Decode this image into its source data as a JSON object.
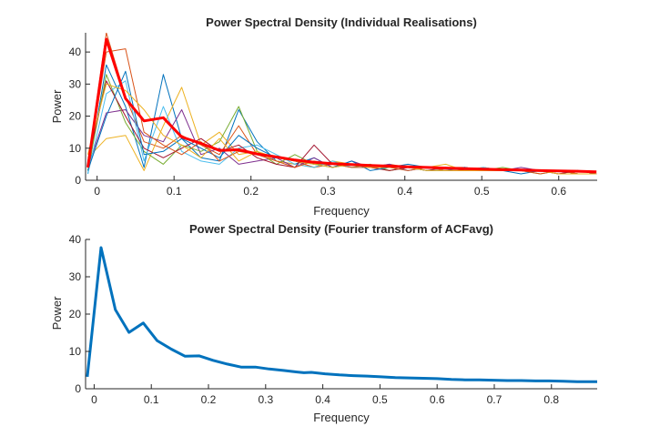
{
  "chart_data": [
    {
      "type": "line",
      "title": "Power Spectral Density (Individual Realisations)",
      "xlabel": "Frequency",
      "ylabel": "Power",
      "xlim": [
        -0.015,
        0.65
      ],
      "ylim": [
        0,
        46
      ],
      "xticks": [
        "0",
        "0.1",
        "0.2",
        "0.3",
        "0.4",
        "0.5",
        "0.6"
      ],
      "yticks": [
        "0",
        "10",
        "20",
        "30",
        "40"
      ],
      "grid": false,
      "x": [
        -0.012,
        0.012,
        0.037,
        0.061,
        0.086,
        0.11,
        0.135,
        0.159,
        0.184,
        0.208,
        0.233,
        0.257,
        0.282,
        0.306,
        0.331,
        0.355,
        0.38,
        0.404,
        0.429,
        0.453,
        0.478,
        0.502,
        0.527,
        0.551,
        0.576,
        0.6,
        0.625,
        0.649
      ],
      "series": [
        {
          "color": "#0072BD",
          "values": [
            2,
            36,
            23,
            4,
            33,
            13,
            7,
            6,
            22,
            12,
            6,
            5,
            7,
            4,
            5,
            4,
            4,
            5,
            4,
            3,
            3,
            4,
            3,
            3,
            3,
            3,
            3,
            2
          ]
        },
        {
          "color": "#D95319",
          "values": [
            5,
            46,
            26,
            12,
            10,
            14,
            11,
            8,
            17,
            8,
            7,
            6,
            4,
            5,
            5,
            4,
            5,
            4,
            4,
            4,
            4,
            3,
            3,
            3,
            3,
            3,
            2,
            2
          ]
        },
        {
          "color": "#EDB120",
          "values": [
            7,
            13,
            14,
            3,
            17,
            29,
            11,
            15,
            8,
            9,
            6,
            5,
            4,
            6,
            5,
            4,
            3,
            4,
            4,
            5,
            3,
            4,
            3,
            3,
            3,
            3,
            3,
            2
          ]
        },
        {
          "color": "#7E2F8E",
          "values": [
            4,
            21,
            22,
            14,
            12,
            22,
            8,
            10,
            5,
            6,
            7,
            4,
            7,
            4,
            6,
            4,
            5,
            3,
            4,
            3,
            4,
            3,
            3,
            4,
            3,
            2,
            3,
            2
          ]
        },
        {
          "color": "#77AC30",
          "values": [
            3,
            33,
            18,
            9,
            5,
            11,
            9,
            12,
            23,
            9,
            5,
            8,
            5,
            5,
            4,
            5,
            3,
            4,
            3,
            4,
            3,
            3,
            4,
            3,
            2,
            3,
            2,
            2
          ]
        },
        {
          "color": "#4DBEEE",
          "values": [
            2,
            27,
            31,
            6,
            23,
            9,
            6,
            5,
            10,
            11,
            8,
            5,
            4,
            6,
            4,
            4,
            4,
            3,
            4,
            3,
            3,
            4,
            3,
            3,
            3,
            2,
            2,
            2
          ]
        },
        {
          "color": "#A2142F",
          "values": [
            6,
            31,
            20,
            10,
            7,
            10,
            13,
            9,
            11,
            7,
            5,
            4,
            11,
            5,
            5,
            4,
            3,
            4,
            3,
            4,
            3,
            3,
            3,
            3,
            3,
            2,
            3,
            2
          ]
        },
        {
          "color": "#0072BD",
          "values": [
            3,
            20,
            34,
            8,
            9,
            13,
            10,
            7,
            14,
            10,
            7,
            6,
            5,
            4,
            6,
            3,
            4,
            4,
            3,
            3,
            4,
            3,
            3,
            2,
            3,
            3,
            2,
            2
          ]
        },
        {
          "color": "#D95319",
          "values": [
            4,
            40,
            41,
            15,
            11,
            8,
            12,
            6,
            9,
            8,
            6,
            4,
            6,
            5,
            4,
            4,
            4,
            3,
            4,
            3,
            3,
            3,
            3,
            3,
            2,
            3,
            2,
            2
          ]
        },
        {
          "color": "#EDB120",
          "values": [
            8,
            30,
            28,
            22,
            14,
            11,
            7,
            13,
            6,
            9,
            7,
            6,
            5,
            4,
            5,
            4,
            4,
            4,
            3,
            3,
            3,
            3,
            3,
            3,
            3,
            2,
            2,
            2
          ]
        },
        {
          "color": "#FF0000",
          "width": 3,
          "values": [
            4,
            44,
            25.5,
            18.5,
            19.5,
            13.5,
            11.5,
            9.3,
            9.5,
            8.2,
            7.3,
            6.3,
            5.6,
            5.2,
            4.9,
            4.6,
            4.4,
            4.2,
            4.0,
            3.8,
            3.6,
            3.5,
            3.3,
            3.2,
            3.0,
            2.9,
            2.8,
            2.6
          ]
        }
      ]
    },
    {
      "type": "line",
      "title": "Power Spectral Density (Fourier transform of ACFavg)",
      "xlabel": "Frequency",
      "ylabel": "Power",
      "xlim": [
        -0.015,
        0.88
      ],
      "ylim": [
        0,
        40
      ],
      "xticks": [
        "0",
        "0.1",
        "0.2",
        "0.3",
        "0.4",
        "0.5",
        "0.6",
        "0.7",
        "0.8"
      ],
      "yticks": [
        "0",
        "10",
        "20",
        "30",
        "40"
      ],
      "grid": false,
      "series": [
        {
          "color": "#0072BD",
          "width": 3,
          "x": [
            -0.012,
            0.012,
            0.037,
            0.061,
            0.086,
            0.11,
            0.135,
            0.159,
            0.184,
            0.208,
            0.233,
            0.257,
            0.282,
            0.306,
            0.331,
            0.355,
            0.367,
            0.38,
            0.404,
            0.429,
            0.453,
            0.478,
            0.502,
            0.527,
            0.551,
            0.576,
            0.6,
            0.625,
            0.649,
            0.674,
            0.698,
            0.723,
            0.747,
            0.772,
            0.796,
            0.821,
            0.845,
            0.87,
            0.88
          ],
          "values": [
            3.2,
            37.8,
            21.2,
            15.1,
            17.6,
            12.9,
            10.6,
            8.7,
            8.8,
            7.6,
            6.6,
            5.8,
            5.8,
            5.3,
            4.9,
            4.5,
            4.3,
            4.4,
            4.0,
            3.7,
            3.5,
            3.4,
            3.2,
            3.0,
            2.9,
            2.8,
            2.7,
            2.5,
            2.4,
            2.4,
            2.3,
            2.2,
            2.2,
            2.1,
            2.1,
            2.0,
            1.9,
            1.9,
            1.9
          ]
        }
      ]
    }
  ]
}
